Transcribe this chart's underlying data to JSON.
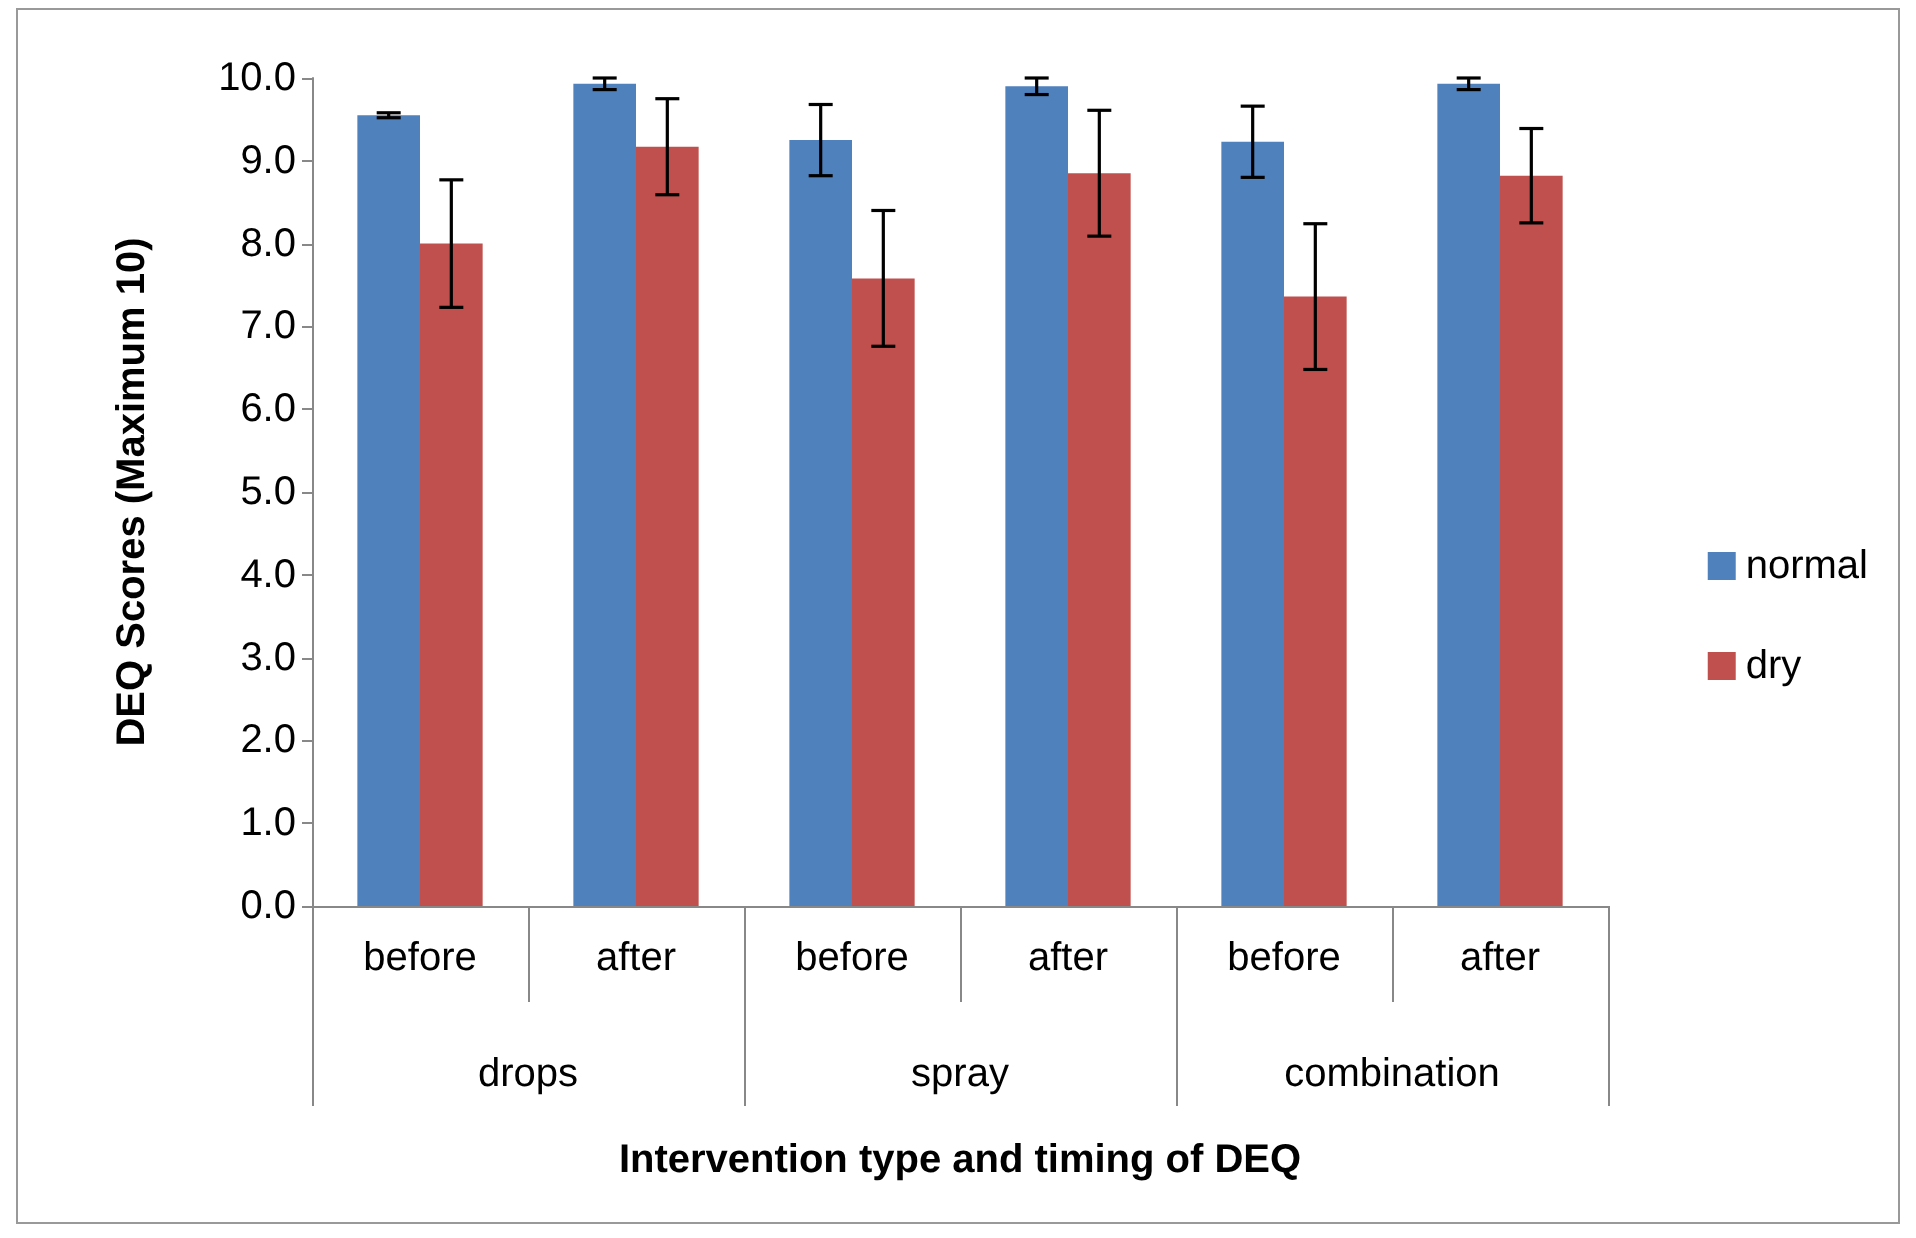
{
  "chart_data": {
    "type": "bar",
    "xlabel": "Intervention type and timing of DEQ",
    "ylabel": "DEQ Scores (Maximum 10)",
    "categories": [
      "before",
      "after",
      "before",
      "after",
      "before",
      "after"
    ],
    "annotations": [
      "drops",
      "spray",
      "combination"
    ],
    "series": [
      {
        "name": "normal",
        "color": "#4f81bd",
        "values": [
          9.55,
          9.93,
          9.25,
          9.9,
          9.23,
          9.93
        ],
        "errors": [
          0.03,
          0.07,
          0.43,
          0.1,
          0.43,
          0.07
        ]
      },
      {
        "name": "dry",
        "color": "#c0504d",
        "values": [
          8.0,
          9.17,
          7.58,
          8.85,
          7.36,
          8.82
        ],
        "errors": [
          0.77,
          0.58,
          0.82,
          0.76,
          0.88,
          0.57
        ]
      }
    ],
    "ylim": [
      0,
      10
    ],
    "yticks": [
      {
        "value": 0,
        "label": "0.0"
      },
      {
        "value": 1,
        "label": "1.0"
      },
      {
        "value": 2,
        "label": "2.0"
      },
      {
        "value": 3,
        "label": "3.0"
      },
      {
        "value": 4,
        "label": "4.0"
      },
      {
        "value": 5,
        "label": "5.0"
      },
      {
        "value": 6,
        "label": "6.0"
      },
      {
        "value": 7,
        "label": "7.0"
      },
      {
        "value": 8,
        "label": "8.0"
      },
      {
        "value": 9,
        "label": "9.0"
      },
      {
        "value": 10,
        "label": "10.0"
      }
    ],
    "grid": false,
    "legend": "right"
  }
}
